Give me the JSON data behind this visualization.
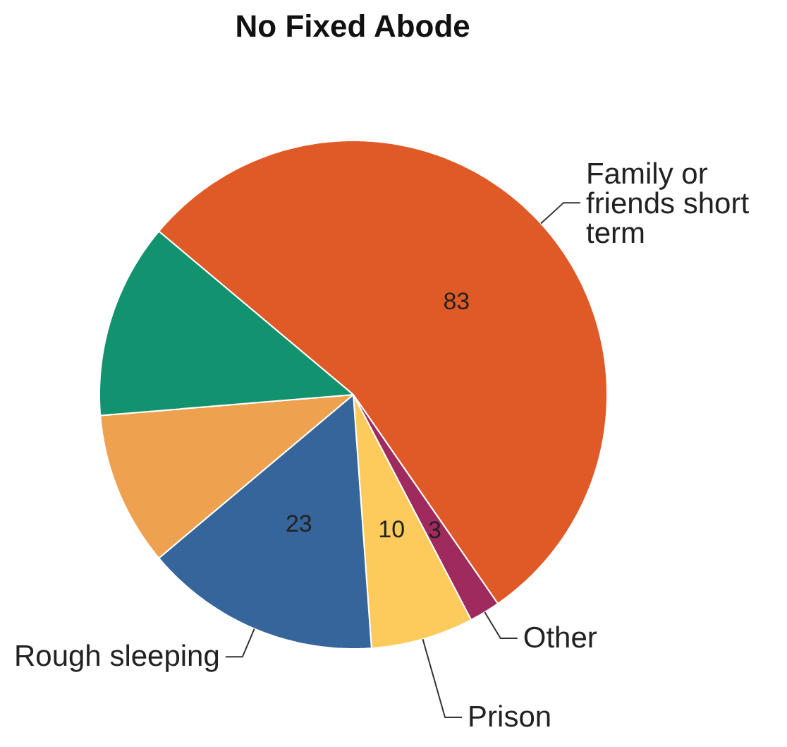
{
  "chart_data": {
    "type": "pie",
    "title": "No Fixed Abode",
    "categories": [
      "Family or friends short term",
      "Other",
      "Prison",
      "Rough sleeping",
      null,
      null
    ],
    "values": [
      83,
      3,
      10,
      23,
      15,
      19
    ],
    "colors": [
      "#e05a27",
      "#9e2a5e",
      "#fccb5c",
      "#35659a",
      "#eea24f",
      "#13926f"
    ],
    "value_labels": [
      "83",
      "3",
      "10",
      "23",
      null,
      null
    ]
  }
}
